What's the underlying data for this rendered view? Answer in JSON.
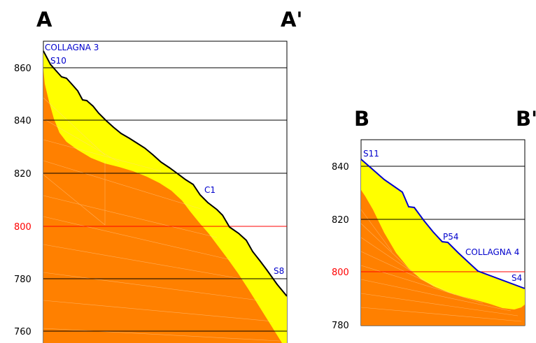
{
  "section_a": {
    "label_left": "A",
    "label_right": "A'",
    "y_ticks": [
      "860",
      "840",
      "820",
      "800",
      "780",
      "760"
    ],
    "points": [
      "COLLAGNA 3",
      "S10",
      "C1",
      "S8"
    ]
  },
  "section_b": {
    "label_left": "B",
    "label_right": "B'",
    "y_ticks": [
      "840",
      "820",
      "800",
      "780"
    ],
    "points": [
      "S11",
      "P54",
      "COLLAGNA 4",
      "S4"
    ]
  },
  "colors": {
    "orange": "#ff8000",
    "yellow": "#ffff00",
    "reference_line": "#ff0000",
    "profile_a": "#000000",
    "profile_b": "#0000cc",
    "point_label": "#0000cc"
  }
}
